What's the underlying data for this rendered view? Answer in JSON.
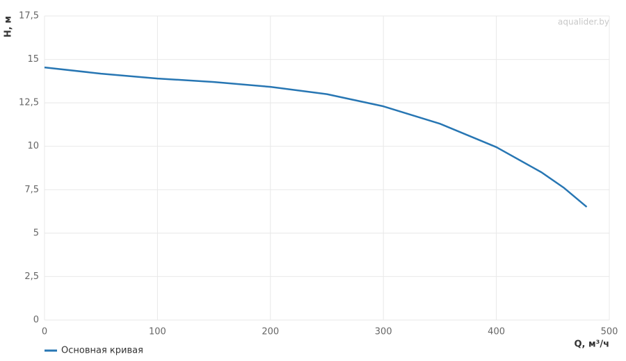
{
  "chart_data": {
    "type": "line",
    "watermark": "aqualider.by",
    "x_label": "Q, м³/ч",
    "y_label": "H, м",
    "x": [
      0,
      50,
      100,
      150,
      200,
      250,
      300,
      350,
      400,
      440,
      460,
      480
    ],
    "series": [
      {
        "name": "Основная кривая",
        "color": "#2776b3",
        "values": [
          14.54,
          14.18,
          13.9,
          13.7,
          13.42,
          13.0,
          12.3,
          11.3,
          9.95,
          8.5,
          7.6,
          6.51
        ]
      }
    ],
    "xlim": [
      0,
      500
    ],
    "xticks": [
      0,
      100,
      200,
      300,
      400,
      500
    ],
    "ylim": [
      0,
      17.5
    ],
    "yticks": [
      0,
      {
        "value": 2.5,
        "label": "2,5"
      },
      5,
      {
        "value": 7.5,
        "label": "7,5"
      },
      10,
      {
        "value": 12.5,
        "label": "12,5"
      },
      15,
      {
        "value": 17.5,
        "label": "17,5"
      }
    ],
    "grid": true,
    "legend": "bottom-left"
  }
}
